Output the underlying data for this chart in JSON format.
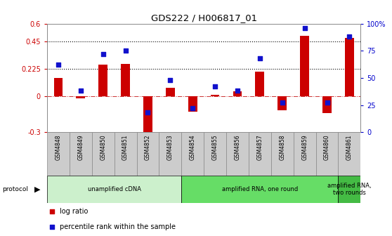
{
  "title": "GDS222 / H006817_01",
  "samples": [
    "GSM4848",
    "GSM4849",
    "GSM4850",
    "GSM4851",
    "GSM4852",
    "GSM4853",
    "GSM4854",
    "GSM4855",
    "GSM4856",
    "GSM4857",
    "GSM4858",
    "GSM4859",
    "GSM4860",
    "GSM4861"
  ],
  "log_ratio": [
    0.15,
    -0.02,
    0.26,
    0.265,
    -0.36,
    0.065,
    -0.13,
    0.01,
    0.04,
    0.2,
    -0.12,
    0.5,
    -0.14,
    0.48
  ],
  "percentile": [
    62,
    38,
    72,
    75,
    18,
    48,
    22,
    42,
    38,
    68,
    27,
    96,
    27,
    88
  ],
  "ylim_left": [
    -0.3,
    0.6
  ],
  "ylim_right": [
    0,
    100
  ],
  "yticks_left": [
    -0.3,
    0.0,
    0.225,
    0.45,
    0.6
  ],
  "yticks_right": [
    0,
    25,
    50,
    75,
    100
  ],
  "ytick_labels_left": [
    "-0.3",
    "0",
    "0.225",
    "0.45",
    "0.6"
  ],
  "ytick_labels_right": [
    "0",
    "25",
    "50",
    "75",
    "100%"
  ],
  "hlines": [
    0.225,
    0.45
  ],
  "bar_color": "#cc0000",
  "dot_color": "#1111cc",
  "protocol_groups": [
    {
      "label": "unamplified cDNA",
      "start": 0,
      "end": 5,
      "color": "#ccf0cc"
    },
    {
      "label": "amplified RNA, one round",
      "start": 6,
      "end": 12,
      "color": "#66dd66"
    },
    {
      "label": "amplified RNA,\ntwo rounds",
      "start": 13,
      "end": 13,
      "color": "#44bb44"
    }
  ],
  "background_color": "#ffffff",
  "plot_bg_color": "#ffffff",
  "xtick_bg": "#dddddd"
}
